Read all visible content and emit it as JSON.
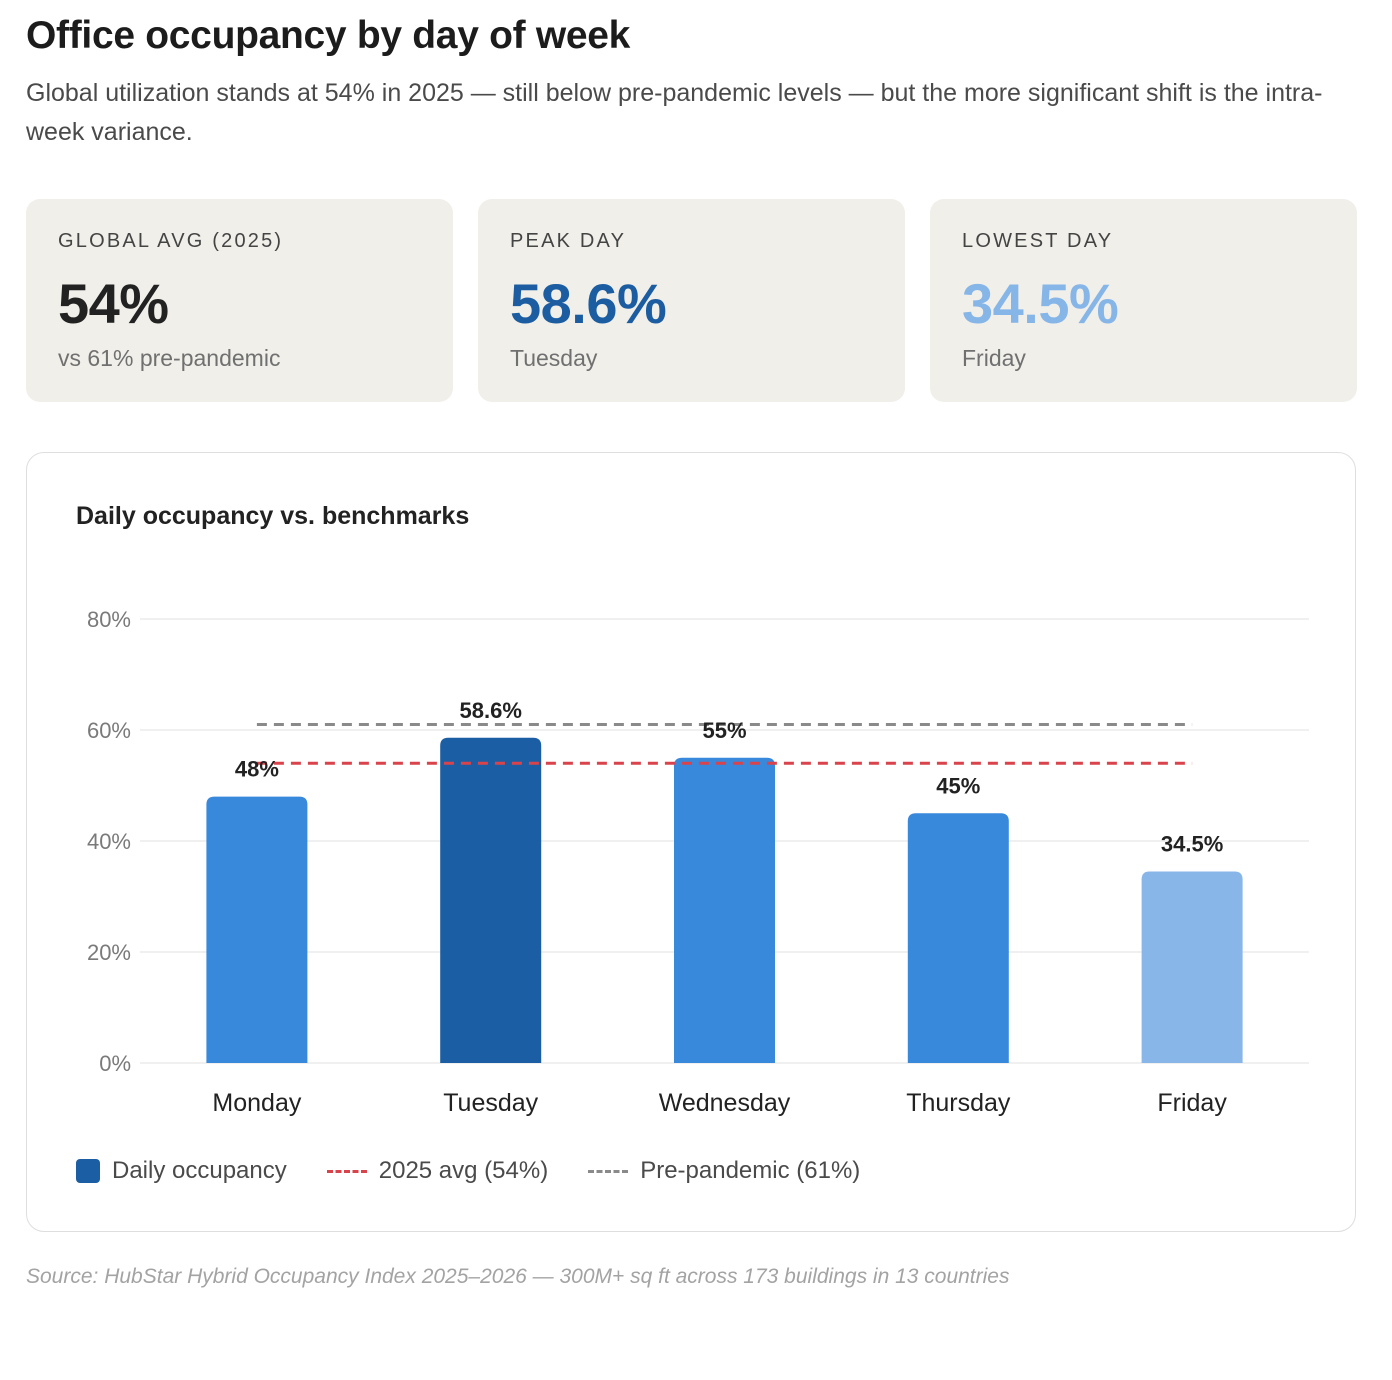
{
  "header": {
    "title": "Office occupancy by day of week",
    "subtitle": "Global utilization stands at 54% in 2025 — still below pre-pandemic levels — but the more significant shift is the intra-week variance."
  },
  "kpis": [
    {
      "label": "GLOBAL AVG (2025)",
      "value": "54%",
      "sub": "vs 61% pre-pandemic",
      "color": "#222222"
    },
    {
      "label": "PEAK DAY",
      "value": "58.6%",
      "sub": "Tuesday",
      "color": "#1c5da2"
    },
    {
      "label": "LOWEST DAY",
      "value": "34.5%",
      "sub": "Friday",
      "color": "#86b5e8"
    }
  ],
  "chart_data": {
    "type": "bar",
    "title": "Daily occupancy vs. benchmarks",
    "categories": [
      "Monday",
      "Tuesday",
      "Wednesday",
      "Thursday",
      "Friday"
    ],
    "values": [
      48,
      58.6,
      55,
      45,
      34.5
    ],
    "value_labels": [
      "48%",
      "58.6%",
      "55%",
      "45%",
      "34.5%"
    ],
    "bar_colors": [
      "#3889dc",
      "#1b5ea3",
      "#3889dc",
      "#3889dc",
      "#88b6e9"
    ],
    "ylim": [
      0,
      80
    ],
    "yticks": [
      0,
      20,
      40,
      60,
      80
    ],
    "ytick_labels": [
      "0%",
      "20%",
      "40%",
      "60%",
      "80%"
    ],
    "grid": true,
    "reference_lines": [
      {
        "name": "2025 avg (54%)",
        "value": 54,
        "color": "#d9434b"
      },
      {
        "name": "Pre-pandemic (61%)",
        "value": 61,
        "color": "#8a8a8a"
      }
    ],
    "legend": {
      "position": "bottom-left",
      "items": [
        {
          "label": "Daily occupancy",
          "style": "swatch",
          "color": "#1b5ea3"
        },
        {
          "label": "2025 avg (54%)",
          "style": "dashed",
          "color": "#d9434b"
        },
        {
          "label": "Pre-pandemic (61%)",
          "style": "dashed",
          "color": "#8a8a8a"
        }
      ]
    }
  },
  "footer": {
    "source": "Source: HubStar Hybrid Occupancy Index 2025–2026 — 300M+ sq ft across 173 buildings in 13 countries"
  }
}
